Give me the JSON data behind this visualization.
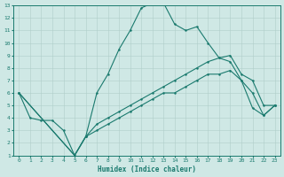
{
  "xlabel": "Humidex (Indice chaleur)",
  "xlim": [
    -0.5,
    23.5
  ],
  "ylim": [
    1,
    13
  ],
  "xticks": [
    0,
    1,
    2,
    3,
    4,
    5,
    6,
    7,
    8,
    9,
    10,
    11,
    12,
    13,
    14,
    15,
    16,
    17,
    18,
    19,
    20,
    21,
    22,
    23
  ],
  "yticks": [
    1,
    2,
    3,
    4,
    5,
    6,
    7,
    8,
    9,
    10,
    11,
    12,
    13
  ],
  "bg_color": "#cfe8e5",
  "grid_color": "#b0ceca",
  "line_color": "#1a7a6e",
  "line1_x": [
    0,
    1,
    2,
    3,
    4,
    5,
    6,
    7,
    8,
    9,
    10,
    11,
    12,
    13,
    14,
    15,
    16,
    17,
    18,
    19,
    20,
    21,
    22,
    23
  ],
  "line1_y": [
    6,
    4,
    3.8,
    3.8,
    3,
    1,
    2.5,
    6,
    7.5,
    9.5,
    11,
    12.8,
    13.2,
    13.2,
    11.5,
    11,
    11.3,
    10,
    8.8,
    8.5,
    7,
    4.8,
    4.2,
    5
  ],
  "line2_x": [
    0,
    5,
    6,
    7,
    8,
    9,
    10,
    11,
    12,
    13,
    14,
    15,
    16,
    17,
    18,
    19,
    20,
    21,
    22,
    23
  ],
  "line2_y": [
    6,
    1,
    2.5,
    3.5,
    4,
    4.5,
    5,
    5.5,
    6,
    6.5,
    7,
    7.5,
    8,
    8.5,
    8.8,
    9,
    7.5,
    7,
    5,
    5
  ],
  "line3_x": [
    0,
    5,
    6,
    7,
    8,
    9,
    10,
    11,
    12,
    13,
    14,
    15,
    16,
    17,
    18,
    19,
    20,
    21,
    22,
    23
  ],
  "line3_y": [
    6,
    1,
    2.5,
    3,
    3.5,
    4,
    4.5,
    5,
    5.5,
    6,
    6,
    6.5,
    7,
    7.5,
    7.5,
    7.8,
    7,
    6,
    4.2,
    5
  ]
}
